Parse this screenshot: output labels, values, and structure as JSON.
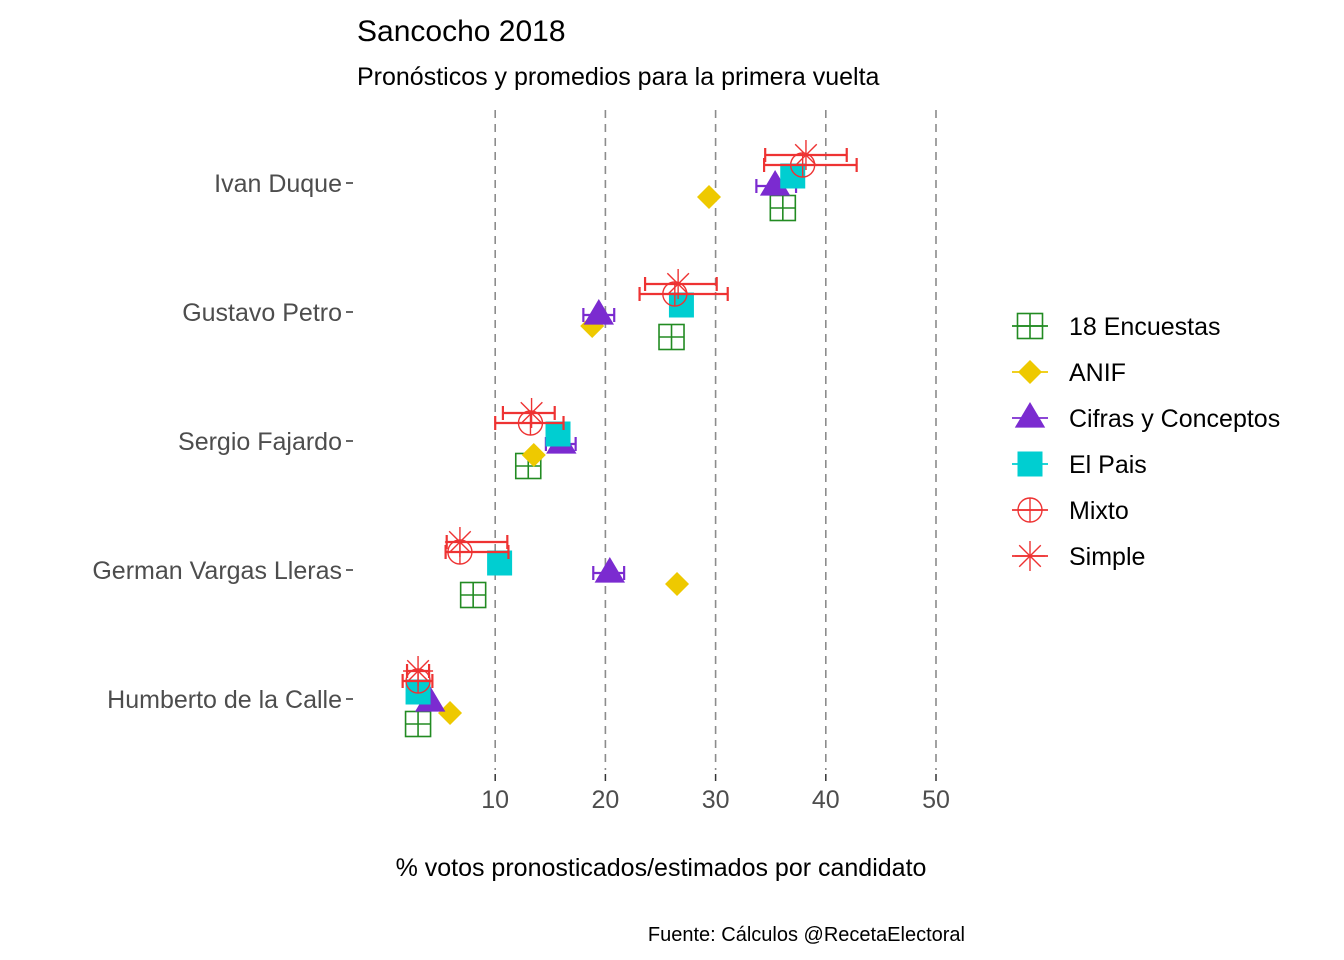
{
  "chart_data": {
    "type": "scatter",
    "title": "Sancocho 2018",
    "subtitle": "Pronósticos  y promedios para la primera vuelta",
    "xlabel": "% votos pronosticados/estimados por candidato",
    "ylabel": "",
    "caption": "Fuente: Cálculos @RecetaElectoral",
    "xlim": [
      0,
      55
    ],
    "xticks": [
      10,
      20,
      30,
      40,
      50
    ],
    "xtick_labels": [
      "10",
      "20",
      "30",
      "40",
      "50"
    ],
    "grid": "dashed vertical at x ticks",
    "legend_position": "right",
    "categories": [
      "Ivan Duque",
      "Gustavo Petro",
      "Sergio Fajardo",
      "German Vargas Lleras",
      "Humberto de la Calle"
    ],
    "series": [
      {
        "name": "18 Encuestas",
        "shape": "square-grid",
        "color": "#228B22",
        "values": [
          36.1,
          26.0,
          13.0,
          8.0,
          3.0
        ]
      },
      {
        "name": "ANIF",
        "shape": "diamond",
        "color": "#EEC900",
        "values": [
          29.4,
          18.8,
          13.5,
          26.5,
          5.9
        ]
      },
      {
        "name": "Cifras y Conceptos",
        "shape": "triangle",
        "color": "#7B2BD0",
        "values": [
          35.4,
          19.4,
          16.0,
          20.4,
          4.1
        ],
        "error": [
          [
            33.7,
            37.3
          ],
          [
            18.0,
            20.8
          ],
          [
            14.6,
            17.3
          ],
          [
            18.9,
            21.7
          ],
          null
        ]
      },
      {
        "name": "El Pais",
        "shape": "square",
        "color": "#00CED1",
        "values": [
          37.0,
          26.9,
          15.7,
          10.4,
          3.0
        ]
      },
      {
        "name": "Mixto",
        "shape": "circle-plus",
        "color": "#EE3333",
        "values": [
          37.9,
          26.3,
          13.2,
          6.8,
          3.0
        ],
        "error": [
          [
            34.4,
            42.8
          ],
          [
            23.1,
            31.1
          ],
          [
            10.0,
            16.2
          ],
          [
            5.5,
            11.2
          ],
          [
            1.6,
            4.3
          ]
        ]
      },
      {
        "name": "Simple",
        "shape": "asterisk",
        "color": "#EE3333",
        "values": [
          38.2,
          26.6,
          13.3,
          6.8,
          3.0
        ],
        "error": [
          [
            34.5,
            41.9
          ],
          [
            23.6,
            30.1
          ],
          [
            10.7,
            15.4
          ],
          [
            5.6,
            11.1
          ],
          [
            2.0,
            4.0
          ]
        ]
      }
    ]
  }
}
